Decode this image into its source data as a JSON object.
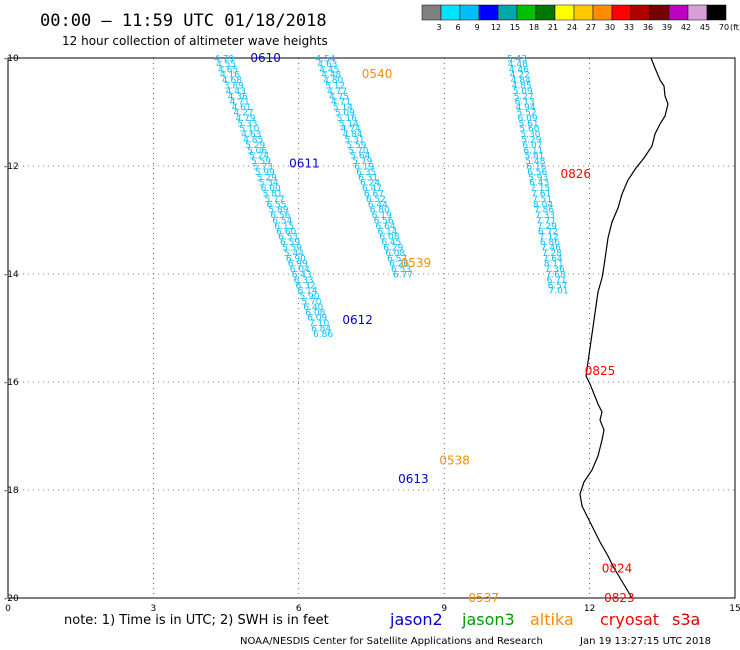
{
  "title": "00:00 – 11:59 UTC 01/18/2018",
  "subtitle": "12 hour collection of altimeter wave heights",
  "colorbar": {
    "labels": [
      "3",
      "6",
      "9",
      "12",
      "15",
      "18",
      "21",
      "24",
      "27",
      "30",
      "33",
      "36",
      "39",
      "42",
      "45",
      "70"
    ],
    "unit": "(ft)",
    "colors": [
      "#808080",
      "#00e5ff",
      "#00bfff",
      "#0000ff",
      "#00a8a8",
      "#00c000",
      "#007800",
      "#ffff00",
      "#ffc800",
      "#ff8c00",
      "#ff0000",
      "#b00000",
      "#780000",
      "#c000c0",
      "#d8a0d8",
      "#000000"
    ]
  },
  "axes": {
    "xlim": [
      0,
      15
    ],
    "ylim": [
      -20,
      -10
    ],
    "x_ticks": [
      "0",
      "3",
      "6",
      "9",
      "12",
      "15"
    ],
    "y_ticks": [
      "-10",
      "-12",
      "-14",
      "-16",
      "-18",
      "-20"
    ]
  },
  "satellite_colors": {
    "jason2": "#0000cc",
    "jason3": "#009900",
    "altika": "#ff8c00",
    "cryosat": "#ff0000",
    "s3a": "#dd0000"
  },
  "time_labels": [
    {
      "text": "0610",
      "sat": "jason2",
      "lon": 5.0,
      "lat": -10.0
    },
    {
      "text": "0540",
      "sat": "altika",
      "lon": 7.3,
      "lat": -10.3
    },
    {
      "text": "0611",
      "sat": "jason2",
      "lon": 5.8,
      "lat": -11.95
    },
    {
      "text": "0826",
      "sat": "cryosat",
      "lon": 11.4,
      "lat": -12.15
    },
    {
      "text": "0539",
      "sat": "altika",
      "lon": 8.1,
      "lat": -13.8
    },
    {
      "text": "0612",
      "sat": "jason2",
      "lon": 6.9,
      "lat": -14.85
    },
    {
      "text": "0825",
      "sat": "cryosat",
      "lon": 11.9,
      "lat": -15.8
    },
    {
      "text": "0538",
      "sat": "altika",
      "lon": 8.9,
      "lat": -17.45
    },
    {
      "text": "0613",
      "sat": "jason2",
      "lon": 8.05,
      "lat": -17.8
    },
    {
      "text": "0824",
      "sat": "cryosat",
      "lon": 12.25,
      "lat": -19.45
    },
    {
      "text": "0537",
      "sat": "altika",
      "lon": 9.5,
      "lat": -20.0
    },
    {
      "text": "0823",
      "sat": "cryosat",
      "lon": 12.3,
      "lat": -20.0
    }
  ],
  "tracks": [
    {
      "name": "jason2 descending",
      "points": [
        {
          "lon": 4.46,
          "lat": -10.01,
          "v": "4.79"
        },
        {
          "lon": 4.5,
          "lat": -10.11,
          "v": "4.55"
        },
        {
          "lon": 4.54,
          "lat": -10.21,
          "v": "4.65"
        },
        {
          "lon": 4.58,
          "lat": -10.31,
          "v": "4.16"
        },
        {
          "lon": 4.62,
          "lat": -10.41,
          "v": "4.68"
        },
        {
          "lon": 4.66,
          "lat": -10.51,
          "v": "3.89"
        },
        {
          "lon": 4.7,
          "lat": -10.61,
          "v": "4.43"
        },
        {
          "lon": 4.74,
          "lat": -10.71,
          "v": "4.36"
        },
        {
          "lon": 4.78,
          "lat": -10.81,
          "v": "4.71"
        },
        {
          "lon": 4.82,
          "lat": -10.91,
          "v": "4.61"
        },
        {
          "lon": 4.86,
          "lat": -11.01,
          "v": "4.27"
        },
        {
          "lon": 4.9,
          "lat": -11.11,
          "v": "4.79"
        },
        {
          "lon": 4.94,
          "lat": -11.21,
          "v": "5.33"
        },
        {
          "lon": 4.98,
          "lat": -11.31,
          "v": "5.10"
        },
        {
          "lon": 5.02,
          "lat": -11.41,
          "v": "4.63"
        },
        {
          "lon": 5.06,
          "lat": -11.51,
          "v": "4.85"
        },
        {
          "lon": 5.1,
          "lat": -11.61,
          "v": "5.29"
        },
        {
          "lon": 5.14,
          "lat": -11.71,
          "v": "5.06"
        },
        {
          "lon": 5.18,
          "lat": -11.81,
          "v": "5.24"
        },
        {
          "lon": 5.22,
          "lat": -11.91,
          "v": "5.59"
        },
        {
          "lon": 5.26,
          "lat": -12.01,
          "v": "5.73"
        },
        {
          "lon": 5.3,
          "lat": -12.11,
          "v": "5.99"
        },
        {
          "lon": 5.34,
          "lat": -12.21,
          "v": "5.29"
        },
        {
          "lon": 5.38,
          "lat": -12.31,
          "v": "5.34"
        },
        {
          "lon": 5.42,
          "lat": -12.41,
          "v": "6.00"
        },
        {
          "lon": 5.46,
          "lat": -12.51,
          "v": "5.81"
        },
        {
          "lon": 5.5,
          "lat": -12.61,
          "v": "5.77"
        },
        {
          "lon": 5.54,
          "lat": -12.71,
          "v": "6.55"
        },
        {
          "lon": 5.58,
          "lat": -12.81,
          "v": "5.89"
        },
        {
          "lon": 5.62,
          "lat": -12.91,
          "v": "6.56"
        },
        {
          "lon": 5.66,
          "lat": -13.01,
          "v": "6.54"
        },
        {
          "lon": 5.7,
          "lat": -13.11,
          "v": "6.15"
        },
        {
          "lon": 5.74,
          "lat": -13.21,
          "v": "6.60"
        },
        {
          "lon": 5.78,
          "lat": -13.31,
          "v": "6.53"
        },
        {
          "lon": 5.82,
          "lat": -13.41,
          "v": "6.59"
        },
        {
          "lon": 5.86,
          "lat": -13.51,
          "v": "5.59"
        },
        {
          "lon": 5.9,
          "lat": -13.61,
          "v": "5.44"
        },
        {
          "lon": 5.94,
          "lat": -13.71,
          "v": "6.90"
        },
        {
          "lon": 5.98,
          "lat": -13.81,
          "v": "6.99"
        },
        {
          "lon": 6.02,
          "lat": -13.91,
          "v": "6.04"
        },
        {
          "lon": 6.06,
          "lat": -14.01,
          "v": "6.43"
        },
        {
          "lon": 6.1,
          "lat": -14.11,
          "v": "6.33"
        },
        {
          "lon": 6.14,
          "lat": -14.21,
          "v": "6.32"
        },
        {
          "lon": 6.18,
          "lat": -14.31,
          "v": "6.14"
        },
        {
          "lon": 6.22,
          "lat": -14.41,
          "v": "5.90"
        },
        {
          "lon": 6.26,
          "lat": -14.51,
          "v": "5.70"
        },
        {
          "lon": 6.3,
          "lat": -14.61,
          "v": "6.40"
        },
        {
          "lon": 6.34,
          "lat": -14.71,
          "v": "6.08"
        },
        {
          "lon": 6.38,
          "lat": -14.81,
          "v": "6.09"
        },
        {
          "lon": 6.42,
          "lat": -14.91,
          "v": "7.10"
        },
        {
          "lon": 6.46,
          "lat": -15.01,
          "v": "6.84"
        },
        {
          "lon": 6.5,
          "lat": -15.11,
          "v": "6.86"
        }
      ]
    },
    {
      "name": "altika descending",
      "points": [
        {
          "lon": 6.55,
          "lat": -10.01,
          "v": "4.54"
        },
        {
          "lon": 6.59,
          "lat": -10.11,
          "v": "4.63"
        },
        {
          "lon": 6.63,
          "lat": -10.21,
          "v": "4.45"
        },
        {
          "lon": 6.67,
          "lat": -10.31,
          "v": "4.48"
        },
        {
          "lon": 6.71,
          "lat": -10.41,
          "v": "4.80"
        },
        {
          "lon": 6.75,
          "lat": -10.51,
          "v": "5.12"
        },
        {
          "lon": 6.79,
          "lat": -10.61,
          "v": "4.77"
        },
        {
          "lon": 6.83,
          "lat": -10.71,
          "v": "4.75"
        },
        {
          "lon": 6.87,
          "lat": -10.81,
          "v": "4.71"
        },
        {
          "lon": 6.91,
          "lat": -10.91,
          "v": "5.14"
        },
        {
          "lon": 6.95,
          "lat": -11.01,
          "v": "5.09"
        },
        {
          "lon": 6.99,
          "lat": -11.11,
          "v": "5.16"
        },
        {
          "lon": 7.03,
          "lat": -11.21,
          "v": "5.14"
        },
        {
          "lon": 7.07,
          "lat": -11.31,
          "v": "4.74"
        },
        {
          "lon": 7.11,
          "lat": -11.41,
          "v": "4.84"
        },
        {
          "lon": 7.15,
          "lat": -11.51,
          "v": "5.31"
        },
        {
          "lon": 7.19,
          "lat": -11.61,
          "v": "5.59"
        },
        {
          "lon": 7.23,
          "lat": -11.71,
          "v": "5.70"
        },
        {
          "lon": 7.27,
          "lat": -11.81,
          "v": "5.64"
        },
        {
          "lon": 7.31,
          "lat": -11.91,
          "v": "5.79"
        },
        {
          "lon": 7.35,
          "lat": -12.01,
          "v": "6.19"
        },
        {
          "lon": 7.39,
          "lat": -12.11,
          "v": "6.35"
        },
        {
          "lon": 7.43,
          "lat": -12.21,
          "v": "6.31"
        },
        {
          "lon": 7.47,
          "lat": -12.31,
          "v": "6.24"
        },
        {
          "lon": 7.51,
          "lat": -12.41,
          "v": "6.47"
        },
        {
          "lon": 7.55,
          "lat": -12.51,
          "v": "6.67"
        },
        {
          "lon": 7.59,
          "lat": -12.61,
          "v": "6.52"
        },
        {
          "lon": 7.63,
          "lat": -12.71,
          "v": "6.44"
        },
        {
          "lon": 7.67,
          "lat": -12.81,
          "v": "6.80"
        },
        {
          "lon": 7.71,
          "lat": -12.91,
          "v": "6.19"
        },
        {
          "lon": 7.75,
          "lat": -13.01,
          "v": "6.56"
        },
        {
          "lon": 7.79,
          "lat": -13.11,
          "v": "6.64"
        },
        {
          "lon": 7.83,
          "lat": -13.21,
          "v": "6.14"
        },
        {
          "lon": 7.87,
          "lat": -13.31,
          "v": "6.08"
        },
        {
          "lon": 7.91,
          "lat": -13.41,
          "v": "6.45"
        },
        {
          "lon": 7.95,
          "lat": -13.51,
          "v": "6.29"
        },
        {
          "lon": 7.99,
          "lat": -13.61,
          "v": "6.08"
        },
        {
          "lon": 8.03,
          "lat": -13.71,
          "v": "6.57"
        },
        {
          "lon": 8.07,
          "lat": -13.81,
          "v": "6.26"
        },
        {
          "lon": 8.11,
          "lat": -13.91,
          "v": "6.53"
        },
        {
          "lon": 8.15,
          "lat": -14.01,
          "v": "6.77"
        }
      ]
    },
    {
      "name": "cryosat ascending",
      "points": [
        {
          "lon": 10.5,
          "lat": -10.01,
          "v": "5.43"
        },
        {
          "lon": 10.52,
          "lat": -10.11,
          "v": "4.48"
        },
        {
          "lon": 10.54,
          "lat": -10.21,
          "v": "4.46"
        },
        {
          "lon": 10.56,
          "lat": -10.31,
          "v": "4.22"
        },
        {
          "lon": 10.58,
          "lat": -10.41,
          "v": "4.84"
        },
        {
          "lon": 10.6,
          "lat": -10.51,
          "v": "4.85"
        },
        {
          "lon": 10.62,
          "lat": -10.61,
          "v": "5.09"
        },
        {
          "lon": 10.64,
          "lat": -10.71,
          "v": "5.27"
        },
        {
          "lon": 10.66,
          "lat": -10.81,
          "v": "6.13"
        },
        {
          "lon": 10.68,
          "lat": -10.91,
          "v": "4.94"
        },
        {
          "lon": 10.7,
          "lat": -11.01,
          "v": "5.52"
        },
        {
          "lon": 10.72,
          "lat": -11.11,
          "v": "6.09"
        },
        {
          "lon": 10.74,
          "lat": -11.21,
          "v": "5.61"
        },
        {
          "lon": 10.76,
          "lat": -11.31,
          "v": "5.60"
        },
        {
          "lon": 10.78,
          "lat": -11.41,
          "v": "5.30"
        },
        {
          "lon": 10.8,
          "lat": -11.51,
          "v": "5.29"
        },
        {
          "lon": 10.82,
          "lat": -11.61,
          "v": "6.07"
        },
        {
          "lon": 10.84,
          "lat": -11.71,
          "v": "6.11"
        },
        {
          "lon": 10.86,
          "lat": -11.81,
          "v": "5.81"
        },
        {
          "lon": 10.88,
          "lat": -11.91,
          "v": "5.48"
        },
        {
          "lon": 10.9,
          "lat": -12.01,
          "v": "6.16"
        },
        {
          "lon": 10.92,
          "lat": -12.11,
          "v": "6.56"
        },
        {
          "lon": 10.94,
          "lat": -12.21,
          "v": "5.93"
        },
        {
          "lon": 10.96,
          "lat": -12.31,
          "v": "6.43"
        },
        {
          "lon": 10.98,
          "lat": -12.41,
          "v": "7.15"
        },
        {
          "lon": 11.0,
          "lat": -12.51,
          "v": "7.61"
        },
        {
          "lon": 11.02,
          "lat": -12.61,
          "v": "7.51"
        },
        {
          "lon": 11.04,
          "lat": -12.71,
          "v": "8.04"
        },
        {
          "lon": 11.06,
          "lat": -12.81,
          "v": "7.86"
        },
        {
          "lon": 11.08,
          "lat": -12.91,
          "v": "7.33"
        },
        {
          "lon": 11.1,
          "lat": -13.01,
          "v": "7.71"
        },
        {
          "lon": 11.12,
          "lat": -13.11,
          "v": "7.29"
        },
        {
          "lon": 11.14,
          "lat": -13.21,
          "v": "6.72"
        },
        {
          "lon": 11.16,
          "lat": -13.31,
          "v": "7.12"
        },
        {
          "lon": 11.18,
          "lat": -13.41,
          "v": "6.86"
        },
        {
          "lon": 11.2,
          "lat": -13.51,
          "v": "7.46"
        },
        {
          "lon": 11.22,
          "lat": -13.61,
          "v": "7.28"
        },
        {
          "lon": 11.24,
          "lat": -13.71,
          "v": "7.64"
        },
        {
          "lon": 11.26,
          "lat": -13.81,
          "v": "8.11"
        },
        {
          "lon": 11.28,
          "lat": -13.91,
          "v": "7.36"
        },
        {
          "lon": 11.3,
          "lat": -14.01,
          "v": "7.68"
        },
        {
          "lon": 11.32,
          "lat": -14.11,
          "v": "6.71"
        },
        {
          "lon": 11.34,
          "lat": -14.21,
          "v": "6.57"
        },
        {
          "lon": 11.36,
          "lat": -14.31,
          "v": "7.01"
        }
      ]
    }
  ],
  "note": "note: 1) Time is in UTC; 2) SWH is in feet",
  "legend": [
    {
      "label": "jason2",
      "sat": "jason2"
    },
    {
      "label": "jason3",
      "sat": "jason3"
    },
    {
      "label": "altika",
      "sat": "altika"
    },
    {
      "label": "cryosat",
      "sat": "cryosat"
    },
    {
      "label": "s3a",
      "sat": "s3a"
    }
  ],
  "footer_left": "NOAA/NESDIS Center for Satellite Applications and Research",
  "footer_right": "Jan 19 13:27:15 UTC 2018"
}
